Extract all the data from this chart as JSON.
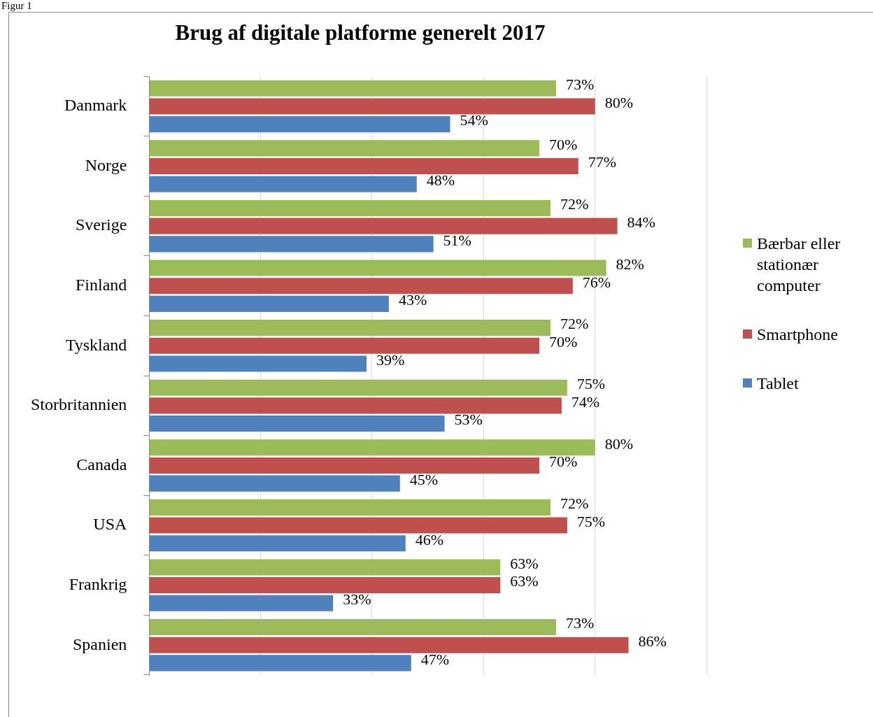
{
  "chart_data": {
    "type": "bar",
    "orientation": "horizontal",
    "title": "Brug af digitale platforme generelt 2017",
    "annotations": [
      "Figur 1"
    ],
    "categories": [
      "Danmark",
      "Norge",
      "Sverige",
      "Finland",
      "Tyskland",
      "Storbritannien",
      "Canada",
      "USA",
      "Frankrig",
      "Spanien"
    ],
    "series": [
      {
        "name": "Bærbar eller stationær computer",
        "color": "#9bbb59",
        "values": [
          73,
          70,
          72,
          82,
          72,
          75,
          80,
          72,
          63,
          73
        ],
        "value_labels": [
          "73%",
          "70%",
          "72%",
          "82%",
          "72%",
          "75%",
          "80%",
          "72%",
          "63%",
          "73%"
        ]
      },
      {
        "name": "Smartphone",
        "color": "#c0504d",
        "values": [
          80,
          77,
          84,
          76,
          70,
          74,
          70,
          75,
          63,
          86
        ],
        "value_labels": [
          "80%",
          "77%",
          "84%",
          "76%",
          "70%",
          "74%",
          "70%",
          "75%",
          "63%",
          "86%"
        ]
      },
      {
        "name": "Tablet",
        "color": "#4f81bd",
        "values": [
          54,
          48,
          51,
          43,
          39,
          53,
          45,
          46,
          33,
          47
        ],
        "value_labels": [
          "54%",
          "48%",
          "51%",
          "43%",
          "39%",
          "53%",
          "45%",
          "46%",
          "33%",
          "47%"
        ]
      }
    ],
    "xlim": [
      0,
      100
    ],
    "xticks": [
      {
        "value": 0,
        "label": null
      },
      {
        "value": 20,
        "label": null
      },
      {
        "value": 40,
        "label": null
      },
      {
        "value": 60,
        "label": null
      },
      {
        "value": 80,
        "label": null
      },
      {
        "value": 100,
        "label": null
      }
    ],
    "grid": "x",
    "tick_labels": "y",
    "legend": "right"
  }
}
